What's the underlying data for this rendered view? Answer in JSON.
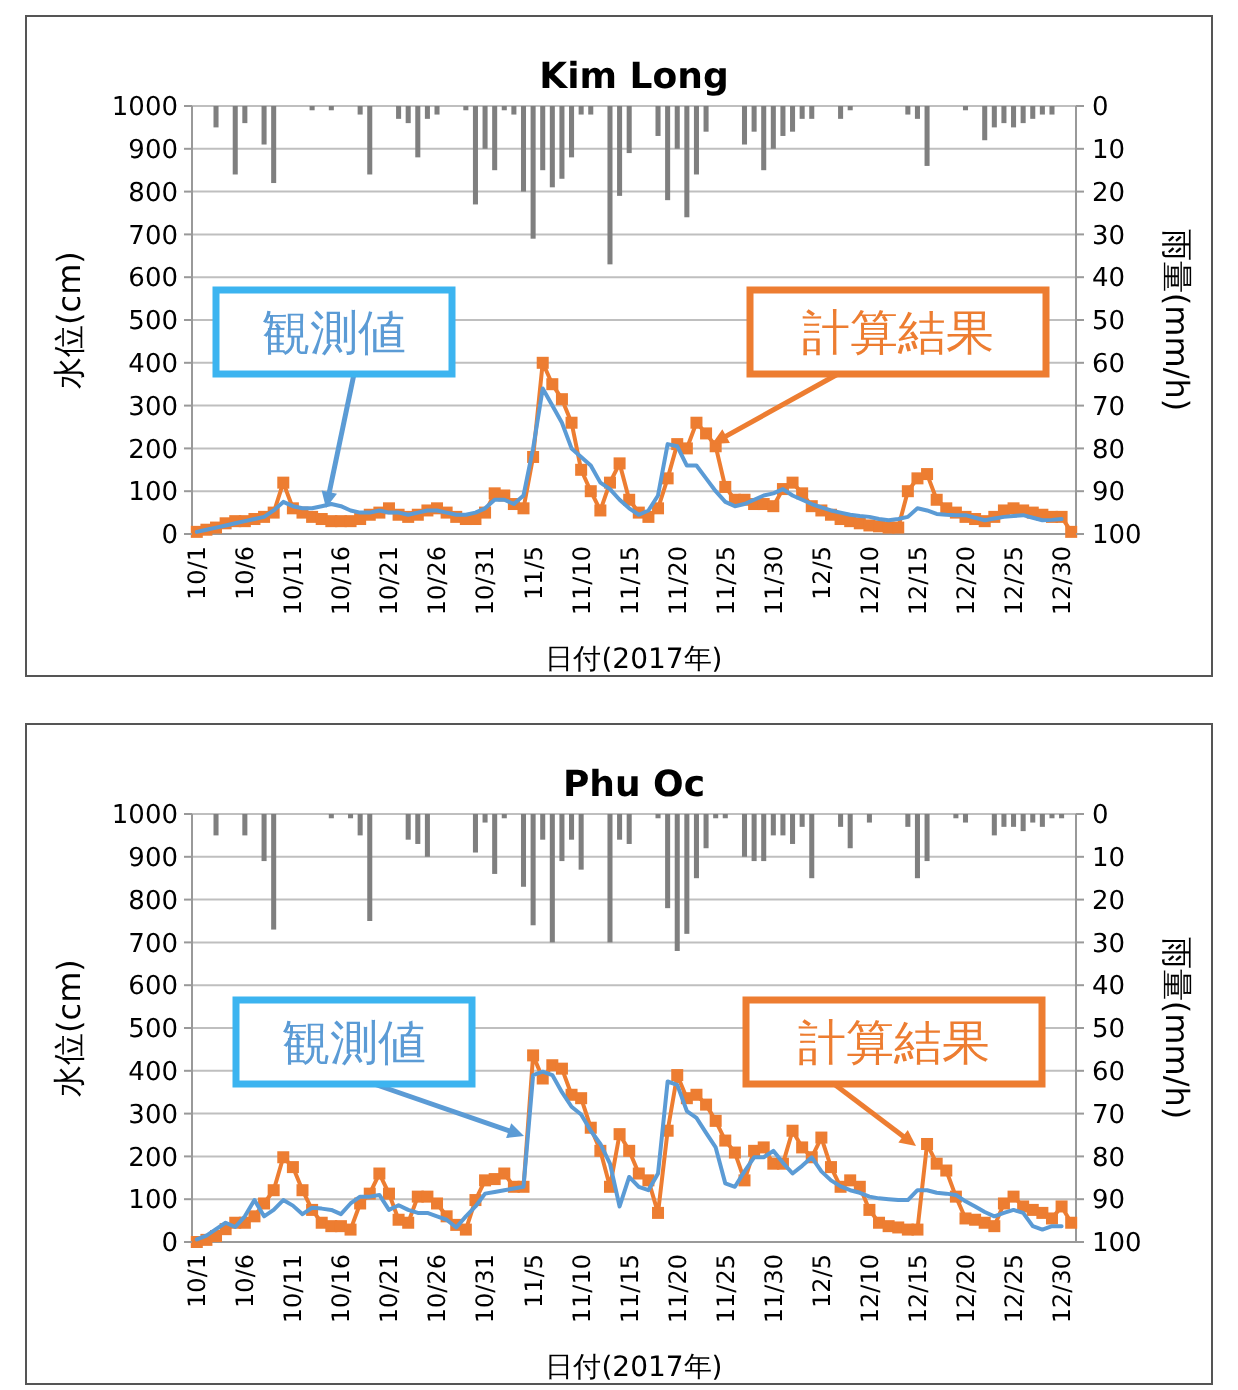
{
  "chart_data": [
    {
      "type": "line",
      "title": "Kim Long",
      "xlabel": "日付(2017年)",
      "ylabel": "水位(cm)",
      "y2label": "雨量(mm/h)",
      "categories": [
        "10/1",
        null,
        null,
        null,
        null,
        "10/6",
        null,
        null,
        null,
        null,
        "10/11",
        null,
        null,
        null,
        null,
        "10/16",
        null,
        null,
        null,
        null,
        "10/21",
        null,
        null,
        null,
        null,
        "10/26",
        null,
        null,
        null,
        null,
        "10/31",
        null,
        null,
        null,
        null,
        "11/5",
        null,
        null,
        null,
        null,
        "11/10",
        null,
        null,
        null,
        null,
        "11/15",
        null,
        null,
        null,
        null,
        "11/20",
        null,
        null,
        null,
        null,
        "11/25",
        null,
        null,
        null,
        null,
        "11/30",
        null,
        null,
        null,
        null,
        "12/5",
        null,
        null,
        null,
        null,
        "12/10",
        null,
        null,
        null,
        null,
        "12/15",
        null,
        null,
        null,
        null,
        "12/20",
        null,
        null,
        null,
        null,
        "12/25",
        null,
        null,
        null,
        null,
        "12/30",
        null
      ],
      "ylim": [
        0,
        1000
      ],
      "yticks": [
        0,
        100,
        200,
        300,
        400,
        500,
        600,
        700,
        800,
        900,
        1000
      ],
      "y2lim": [
        100,
        0
      ],
      "y2ticks": [
        0,
        10,
        20,
        30,
        40,
        50,
        60,
        70,
        80,
        90,
        100
      ],
      "grid": "y",
      "series": [
        {
          "type": "bar",
          "axis": "y2",
          "color": "#7f7f7f",
          "values": [
            null,
            null,
            5,
            null,
            16,
            4,
            null,
            9,
            18,
            null,
            null,
            null,
            1,
            null,
            1,
            null,
            null,
            2,
            16,
            null,
            null,
            3,
            4,
            12,
            3,
            2,
            null,
            null,
            1,
            23,
            10,
            15,
            1,
            2,
            20,
            31,
            15,
            19,
            17,
            12,
            2,
            2,
            null,
            37,
            21,
            11,
            null,
            null,
            7,
            22,
            10,
            26,
            16,
            6,
            null,
            null,
            null,
            9,
            6,
            15,
            10,
            7,
            6,
            3,
            3,
            null,
            null,
            3,
            1,
            null,
            null,
            null,
            null,
            null,
            2,
            3,
            14,
            null,
            null,
            null,
            1,
            null,
            8,
            5,
            4,
            5,
            4,
            3,
            2,
            2,
            null,
            null
          ]
        },
        {
          "type": "line",
          "name": "観測値",
          "color": "#5b9bd5",
          "marker": "none",
          "values": [
            5,
            10,
            15,
            20,
            25,
            30,
            35,
            40,
            55,
            75,
            65,
            60,
            60,
            65,
            70,
            65,
            55,
            50,
            50,
            55,
            50,
            50,
            45,
            50,
            55,
            55,
            50,
            45,
            45,
            50,
            60,
            80,
            80,
            70,
            90,
            200,
            340,
            300,
            260,
            200,
            180,
            160,
            120,
            105,
            80,
            60,
            45,
            55,
            90,
            210,
            205,
            160,
            160,
            130,
            100,
            75,
            65,
            70,
            80,
            90,
            95,
            105,
            90,
            80,
            70,
            62,
            55,
            50,
            45,
            42,
            40,
            35,
            32,
            35,
            40,
            60,
            55,
            47,
            45,
            44,
            44,
            38,
            32,
            36,
            40,
            42,
            44,
            38,
            32,
            33,
            35,
            null
          ]
        },
        {
          "type": "line",
          "name": "計算結果",
          "color": "#ed7d31",
          "marker": "square",
          "values": [
            5,
            10,
            15,
            25,
            30,
            30,
            35,
            40,
            50,
            120,
            60,
            50,
            40,
            35,
            30,
            30,
            30,
            35,
            45,
            50,
            60,
            45,
            40,
            45,
            55,
            60,
            50,
            40,
            35,
            35,
            50,
            95,
            90,
            70,
            60,
            180,
            400,
            350,
            315,
            260,
            150,
            100,
            55,
            120,
            165,
            80,
            50,
            40,
            60,
            130,
            210,
            200,
            260,
            235,
            205,
            110,
            80,
            80,
            70,
            70,
            65,
            105,
            120,
            95,
            65,
            55,
            45,
            35,
            30,
            25,
            20,
            18,
            15,
            15,
            100,
            130,
            140,
            80,
            60,
            50,
            40,
            35,
            30,
            40,
            55,
            60,
            55,
            50,
            45,
            40,
            40,
            5
          ]
        }
      ]
    },
    {
      "type": "line",
      "title": "Phu Oc",
      "xlabel": "日付(2017年)",
      "ylabel": "水位(cm)",
      "y2label": "雨量(mm/h)",
      "categories": [
        "10/1",
        null,
        null,
        null,
        null,
        "10/6",
        null,
        null,
        null,
        null,
        "10/11",
        null,
        null,
        null,
        null,
        "10/16",
        null,
        null,
        null,
        null,
        "10/21",
        null,
        null,
        null,
        null,
        "10/26",
        null,
        null,
        null,
        null,
        "10/31",
        null,
        null,
        null,
        null,
        "11/5",
        null,
        null,
        null,
        null,
        "11/10",
        null,
        null,
        null,
        null,
        "11/15",
        null,
        null,
        null,
        null,
        "11/20",
        null,
        null,
        null,
        null,
        "11/25",
        null,
        null,
        null,
        null,
        "11/30",
        null,
        null,
        null,
        null,
        "12/5",
        null,
        null,
        null,
        null,
        "12/10",
        null,
        null,
        null,
        null,
        "12/15",
        null,
        null,
        null,
        null,
        "12/20",
        null,
        null,
        null,
        null,
        "12/25",
        null,
        null,
        null,
        null,
        "12/30",
        null
      ],
      "ylim": [
        0,
        1000
      ],
      "yticks": [
        0,
        100,
        200,
        300,
        400,
        500,
        600,
        700,
        800,
        900,
        1000
      ],
      "y2lim": [
        100,
        0
      ],
      "y2ticks": [
        0,
        10,
        20,
        30,
        40,
        50,
        60,
        70,
        80,
        90,
        100
      ],
      "grid": "y",
      "series": [
        {
          "type": "bar",
          "axis": "y2",
          "color": "#7f7f7f",
          "values": [
            null,
            null,
            5,
            null,
            null,
            5,
            null,
            11,
            27,
            null,
            null,
            null,
            null,
            null,
            1,
            null,
            1,
            5,
            25,
            null,
            null,
            null,
            6,
            7,
            10,
            null,
            null,
            null,
            null,
            9,
            2,
            14,
            1,
            null,
            17,
            26,
            6,
            30,
            11,
            6,
            13,
            null,
            null,
            30,
            6,
            7,
            null,
            null,
            1,
            22,
            32,
            28,
            15,
            8,
            1,
            1,
            null,
            10,
            11,
            11,
            5,
            5,
            7,
            3,
            15,
            null,
            null,
            3,
            8,
            null,
            2,
            null,
            null,
            null,
            3,
            15,
            11,
            null,
            null,
            1,
            2,
            null,
            null,
            5,
            3,
            3,
            4,
            2,
            3,
            1,
            1,
            null
          ]
        },
        {
          "type": "line",
          "name": "観測値",
          "color": "#5b9bd5",
          "marker": "none",
          "values": [
            6,
            15,
            30,
            45,
            35,
            60,
            98,
            60,
            75,
            98,
            85,
            65,
            80,
            78,
            75,
            65,
            90,
            106,
            106,
            110,
            75,
            86,
            75,
            68,
            68,
            60,
            52,
            34,
            60,
            83,
            113,
            117,
            121,
            125,
            129,
            390,
            398,
            390,
            350,
            316,
            298,
            260,
            229,
            183,
            83,
            152,
            129,
            121,
            160,
            375,
            367,
            306,
            290,
            255,
            221,
            137,
            129,
            165,
            198,
            198,
            213,
            185,
            160,
            178,
            198,
            165,
            144,
            130,
            121,
            115,
            106,
            102,
            100,
            98,
            98,
            121,
            121,
            115,
            113,
            110,
            95,
            83,
            70,
            60,
            68,
            75,
            68,
            37,
            29,
            37,
            37,
            null
          ]
        },
        {
          "type": "line",
          "name": "計算結果",
          "color": "#ed7d31",
          "marker": "square",
          "values": [
            0,
            5,
            14,
            30,
            45,
            45,
            60,
            90,
            121,
            198,
            175,
            121,
            75,
            45,
            37,
            37,
            29,
            90,
            113,
            160,
            113,
            52,
            45,
            106,
            106,
            90,
            60,
            40,
            29,
            98,
            144,
            147,
            160,
            129,
            129,
            436,
            382,
            413,
            405,
            344,
            336,
            267,
            213,
            129,
            252,
            213,
            160,
            144,
            68,
            260,
            390,
            336,
            344,
            321,
            283,
            237,
            209,
            144,
            213,
            221,
            183,
            183,
            260,
            221,
            198,
            244,
            175,
            129,
            144,
            129,
            75,
            45,
            37,
            34,
            29,
            29,
            229,
            183,
            167,
            106,
            55,
            52,
            45,
            37,
            90,
            106,
            83,
            75,
            68,
            55,
            83,
            45
          ]
        }
      ]
    }
  ]
}
